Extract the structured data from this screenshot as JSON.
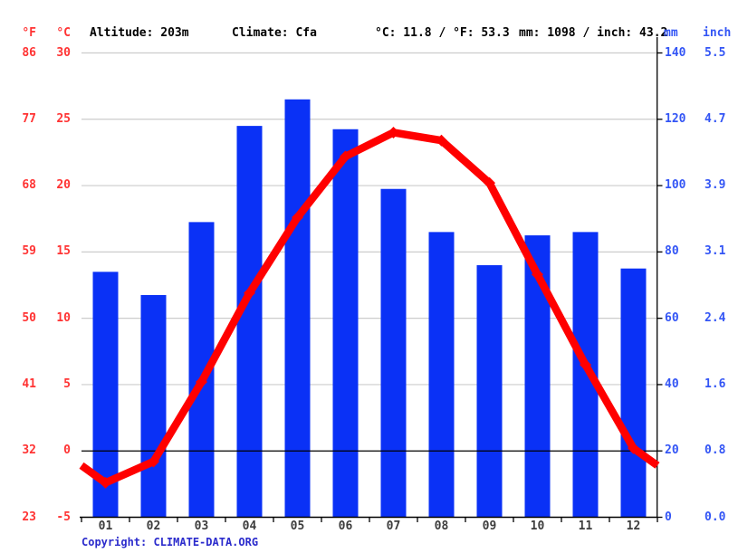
{
  "header": {
    "f_label": "°F",
    "c_label": "°C",
    "altitude": "Altitude: 203m",
    "climate": "Climate: Cfa",
    "temp_summary": "°C: 11.8 / °F: 53.3",
    "precip_summary": "mm: 1098 / inch: 43.2",
    "mm_label": "mm",
    "inch_label": "inch"
  },
  "axes": {
    "f_ticks": [
      "86",
      "77",
      "68",
      "59",
      "50",
      "41",
      "32",
      "23"
    ],
    "c_ticks": [
      "30",
      "25",
      "20",
      "15",
      "10",
      "5",
      "0",
      "-5"
    ],
    "mm_ticks": [
      "140",
      "120",
      "100",
      "80",
      "60",
      "40",
      "20",
      "0"
    ],
    "inch_ticks": [
      "5.5",
      "4.7",
      "3.9",
      "3.1",
      "2.4",
      "1.6",
      "0.8",
      "0.0"
    ],
    "mm_tick_values": [
      140,
      120,
      100,
      80,
      60,
      40,
      20,
      0
    ]
  },
  "chart_data": {
    "type": "bar+line",
    "categories": [
      "01",
      "02",
      "03",
      "04",
      "05",
      "06",
      "07",
      "08",
      "09",
      "10",
      "11",
      "12"
    ],
    "series": [
      {
        "name": "precipitation",
        "type": "bar",
        "unit": "mm",
        "axis": "right",
        "ylim": [
          0,
          140
        ],
        "values": [
          74,
          67,
          89,
          118,
          126,
          117,
          99,
          86,
          76,
          85,
          86,
          75
        ]
      },
      {
        "name": "temperature",
        "type": "line",
        "unit": "°C",
        "axis": "left",
        "ylim": [
          -5,
          30
        ],
        "values": [
          -2.4,
          -0.8,
          5.2,
          11.9,
          17.6,
          22.2,
          24.0,
          23.4,
          20.2,
          13.3,
          6.5,
          0.2
        ]
      }
    ],
    "title": "",
    "xlabel": "",
    "ylabel_left": "°C / °F",
    "ylabel_right": "mm / inch",
    "annotations": {
      "mean_temperature_c": 11.8,
      "mean_temperature_f": 53.3,
      "total_precipitation_mm": 1098,
      "total_precipitation_inch": 43.2
    },
    "grid": true,
    "legend": "none"
  },
  "footer": {
    "copyright_label": "Copyright:",
    "link": "CLIMATE-DATA.ORG"
  },
  "colors": {
    "bar": "#0a31f6",
    "line": "#ff0000",
    "red_text": "#ff3333",
    "blue_text": "#3355f5",
    "copyright": "#2b2bcc",
    "month_text": "#3d3d3d",
    "gridline": "#cccccc",
    "axis": "#000000"
  }
}
